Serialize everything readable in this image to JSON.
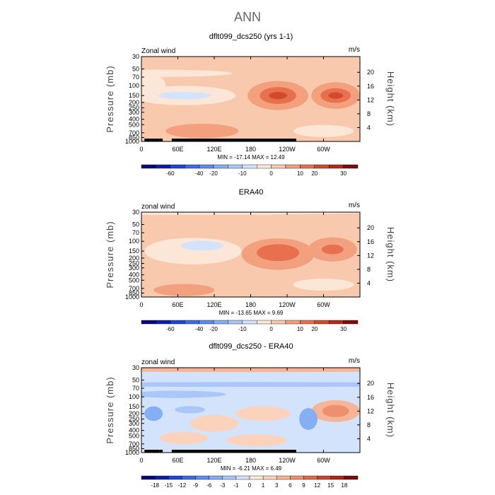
{
  "figure": {
    "title": "ANN"
  },
  "palettes": {
    "wind": [
      "#08087a",
      "#0c1ead",
      "#1f45d6",
      "#3b6be6",
      "#5d8cf0",
      "#85aef5",
      "#abc7f8",
      "#d3e3fb",
      "#fce6d8",
      "#f8c9ad",
      "#f2a07e",
      "#e8704e",
      "#d34a2a",
      "#b8281a",
      "#7f0b0b"
    ],
    "diff": [
      "#08087a",
      "#0c1ead",
      "#1f45d6",
      "#3b6be6",
      "#5d8cf0",
      "#85aef5",
      "#abc7f8",
      "#d3e3fb",
      "#fdeadd",
      "#fbd3bc",
      "#f5b596",
      "#ee9070",
      "#e36a48",
      "#cf4428",
      "#b0241a",
      "#7a0909"
    ]
  },
  "chart_data": [
    {
      "type": "heatmap",
      "id": "model",
      "title": "dflt099_dcs250 (yrs 1-1)",
      "left_label": "Zonal wind",
      "right_label": "m/s",
      "ylabel": "Pressure (mb)",
      "ylabel_right": "Height (km)",
      "pressure_ticks": [
        30,
        50,
        70,
        100,
        150,
        200,
        250,
        300,
        400,
        500,
        700,
        850,
        1000
      ],
      "pressure_labels": [
        "30",
        "50",
        "70",
        "100",
        "150",
        "200",
        "250",
        "300",
        "400",
        "500",
        "700",
        "850",
        "1000"
      ],
      "height_ticks": [
        4,
        8,
        12,
        16,
        20
      ],
      "height_labels": [
        "4",
        "8",
        "12",
        "16",
        "20"
      ],
      "xlim": [
        0,
        360
      ],
      "x_ticks": [
        0,
        60,
        120,
        180,
        240,
        300
      ],
      "x_labels": [
        "0",
        "60E",
        "120E",
        "180",
        "120W",
        "60W"
      ],
      "min_max_text": "MIN =  -17.14   MAX =   12.49",
      "colorbar_palette": "wind",
      "colorbar_labels": [
        "-60",
        "-40",
        "-20",
        "-10",
        "0",
        "10",
        "20",
        "30"
      ],
      "contour_levels": [
        -60,
        -50,
        -40,
        -30,
        -20,
        -15,
        -10,
        -5,
        0,
        5,
        10,
        15,
        20,
        25,
        30
      ],
      "background_value": 2,
      "features": [
        {
          "lon": 70,
          "p": 150,
          "value": -5,
          "rx": 85,
          "ry": 0.4
        },
        {
          "lon": 70,
          "p": 150,
          "value": -10,
          "rx": 45,
          "ry": 0.15
        },
        {
          "lon": 10,
          "p": 100,
          "value": -3,
          "rx": 30,
          "ry": 0.5
        },
        {
          "lon": 30,
          "p": 60,
          "value": -1,
          "rx": 120,
          "ry": 0.15
        },
        {
          "lon": 225,
          "p": 150,
          "value": 5,
          "rx": 50,
          "ry": 0.6
        },
        {
          "lon": 225,
          "p": 150,
          "value": 10,
          "rx": 30,
          "ry": 0.35
        },
        {
          "lon": 225,
          "p": 150,
          "value": 15,
          "rx": 15,
          "ry": 0.15
        },
        {
          "lon": 320,
          "p": 150,
          "value": 5,
          "rx": 40,
          "ry": 0.55
        },
        {
          "lon": 320,
          "p": 150,
          "value": 10,
          "rx": 25,
          "ry": 0.3
        },
        {
          "lon": 320,
          "p": 150,
          "value": 15,
          "rx": 12,
          "ry": 0.13
        },
        {
          "lon": 100,
          "p": 650,
          "value": 5,
          "rx": 60,
          "ry": 0.3
        },
        {
          "lon": 300,
          "p": 650,
          "value": -3,
          "rx": 50,
          "ry": 0.25
        }
      ],
      "terrain": [
        [
          5,
          30,
          28
        ],
        [
          30,
          35,
          33
        ],
        [
          50,
          250,
          26
        ],
        [
          50,
          255,
          28
        ]
      ]
    },
    {
      "type": "heatmap",
      "id": "era40",
      "title": "ERA40",
      "left_label": "zonal wind",
      "right_label": "m/s",
      "ylabel": "Pressure (mb)",
      "ylabel_right": "Height (km)",
      "pressure_ticks": [
        30,
        50,
        70,
        100,
        150,
        200,
        250,
        300,
        400,
        500,
        700,
        850,
        1000
      ],
      "pressure_labels": [
        "30",
        "50",
        "70",
        "100",
        "150",
        "200",
        "250",
        "300",
        "400",
        "500",
        "700",
        "850",
        "1000"
      ],
      "height_ticks": [
        4,
        8,
        12,
        16,
        20
      ],
      "height_labels": [
        "4",
        "8",
        "12",
        "16",
        "20"
      ],
      "xlim": [
        0,
        360
      ],
      "x_ticks": [
        0,
        60,
        120,
        180,
        240,
        300
      ],
      "x_labels": [
        "0",
        "60E",
        "120E",
        "180",
        "120W",
        "60W"
      ],
      "min_max_text": "MIN =  -13.65   MAX =     9.69",
      "colorbar_palette": "wind",
      "colorbar_labels": [
        "-60",
        "-40",
        "-20",
        "-10",
        "0",
        "10",
        "20",
        "30"
      ],
      "contour_levels": [
        -60,
        -50,
        -40,
        -30,
        -20,
        -15,
        -10,
        -5,
        0,
        5,
        10,
        15,
        20,
        25,
        30
      ],
      "background_value": 2,
      "features": [
        {
          "lon": 0,
          "p": 30,
          "value": -3,
          "rx": 400,
          "ry": 0.12
        },
        {
          "lon": 85,
          "p": 150,
          "value": -3,
          "rx": 80,
          "ry": 0.55
        },
        {
          "lon": 100,
          "p": 120,
          "value": -7,
          "rx": 35,
          "ry": 0.2
        },
        {
          "lon": 225,
          "p": 170,
          "value": 5,
          "rx": 60,
          "ry": 0.65
        },
        {
          "lon": 225,
          "p": 160,
          "value": 10,
          "rx": 35,
          "ry": 0.35
        },
        {
          "lon": 315,
          "p": 140,
          "value": 5,
          "rx": 40,
          "ry": 0.5
        },
        {
          "lon": 315,
          "p": 140,
          "value": 10,
          "rx": 18,
          "ry": 0.2
        },
        {
          "lon": 70,
          "p": 750,
          "value": 5,
          "rx": 50,
          "ry": 0.25
        },
        {
          "lon": 300,
          "p": 600,
          "value": -3,
          "rx": 50,
          "ry": 0.25
        }
      ],
      "terrain": []
    },
    {
      "type": "heatmap",
      "id": "difference",
      "title": "dflt099_dcs250 - ERA40",
      "left_label": "zonal wind",
      "right_label": "m/s",
      "ylabel": "Pressure (mb)",
      "ylabel_right": "Height (km)",
      "pressure_ticks": [
        30,
        50,
        70,
        100,
        150,
        200,
        250,
        300,
        400,
        500,
        700,
        850,
        1000
      ],
      "pressure_labels": [
        "30",
        "50",
        "70",
        "100",
        "150",
        "200",
        "250",
        "300",
        "400",
        "500",
        "700",
        "850",
        "1000"
      ],
      "height_ticks": [
        4,
        8,
        12,
        16,
        20
      ],
      "height_labels": [
        "4",
        "8",
        "12",
        "16",
        "20"
      ],
      "xlim": [
        0,
        360
      ],
      "x_ticks": [
        0,
        60,
        120,
        180,
        240,
        300
      ],
      "x_labels": [
        "0",
        "60E",
        "120E",
        "180",
        "120W",
        "60W"
      ],
      "min_max_text": "MIN =   -6.21   MAX =     6.49",
      "colorbar_palette": "diff",
      "colorbar_labels": [
        "-18",
        "-15",
        "-12",
        "-9",
        "-6",
        "-3",
        "-1",
        "0",
        "1",
        "3",
        "6",
        "9",
        "12",
        "15",
        "18"
      ],
      "contour_levels": [
        -18,
        -15,
        -12,
        -9,
        -6,
        -3,
        -1,
        0,
        1,
        3,
        6,
        9,
        12,
        15,
        18
      ],
      "background_value": -0.5,
      "features": [
        {
          "lon": 180,
          "p": 30,
          "value": 3.5,
          "rx": 400,
          "ry": 0.18
        },
        {
          "lon": 180,
          "p": 60,
          "value": -2,
          "rx": 400,
          "ry": 0.1
        },
        {
          "lon": 60,
          "p": 90,
          "value": -1.5,
          "rx": 80,
          "ry": 0.15
        },
        {
          "lon": 320,
          "p": 180,
          "value": 3,
          "rx": 40,
          "ry": 0.45
        },
        {
          "lon": 320,
          "p": 180,
          "value": 6,
          "rx": 22,
          "ry": 0.25
        },
        {
          "lon": 200,
          "p": 200,
          "value": 2,
          "rx": 45,
          "ry": 0.3
        },
        {
          "lon": 20,
          "p": 200,
          "value": -4,
          "rx": 15,
          "ry": 0.3
        },
        {
          "lon": 275,
          "p": 250,
          "value": -4,
          "rx": 15,
          "ry": 0.45
        },
        {
          "lon": 120,
          "p": 300,
          "value": 1.5,
          "rx": 40,
          "ry": 0.35
        },
        {
          "lon": 70,
          "p": 550,
          "value": 2,
          "rx": 40,
          "ry": 0.25
        },
        {
          "lon": 190,
          "p": 600,
          "value": 1.5,
          "rx": 50,
          "ry": 0.25
        },
        {
          "lon": 80,
          "p": 170,
          "value": -3,
          "rx": 25,
          "ry": 0.15
        }
      ],
      "terrain": [
        [
          5,
          30,
          28
        ],
        [
          30,
          35,
          33
        ],
        [
          50,
          250,
          26
        ],
        [
          50,
          255,
          28
        ]
      ]
    }
  ]
}
